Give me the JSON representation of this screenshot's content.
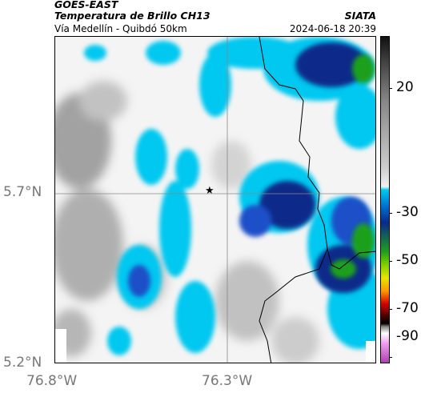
{
  "header": {
    "satellite": "GOES-EAST",
    "product": "Temperatura de Brillo CH13",
    "source": "SIATA",
    "route": "Vía Medellín - Quibdó 50km",
    "datetime": "2024-06-18 20:39"
  },
  "axes": {
    "lat_labels": [
      "5.7°N",
      "5.2°N"
    ],
    "lon_labels": [
      "76.8°W",
      "76.3°W"
    ]
  },
  "colorbar": {
    "ticks": [
      "20",
      "-30",
      "-50",
      "-70",
      "-90"
    ],
    "colors": {
      "high": "#1a1a1a",
      "cold_cloud": "#00c8f0",
      "deep_blue": "#0a2a8a",
      "green": "#1ea01e",
      "yellow": "#e6e600",
      "red": "#d00000",
      "magenta": "#b040b0"
    }
  },
  "marker": {
    "icon": "star-icon"
  }
}
